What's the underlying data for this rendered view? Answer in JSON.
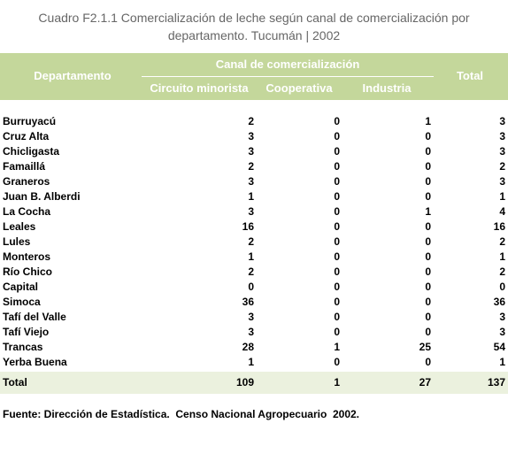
{
  "header": {
    "title": "Cuadro F2.1.1 Comercialización de leche según canal de comercialización por departamento. Tucumán | 2002"
  },
  "table": {
    "department_header": "Departamento",
    "group_header": "Canal de comercialización",
    "channel_headers": [
      "Circuito minorista",
      "Cooperativa",
      "Industria"
    ],
    "total_header": "Total",
    "rows": [
      [
        "Burruyacú",
        2,
        0,
        1,
        3
      ],
      [
        "Cruz Alta",
        3,
        0,
        0,
        3
      ],
      [
        "Chicligasta",
        3,
        0,
        0,
        3
      ],
      [
        "Famaillá",
        2,
        0,
        0,
        2
      ],
      [
        "Graneros",
        3,
        0,
        0,
        3
      ],
      [
        "Juan B. Alberdi",
        1,
        0,
        0,
        1
      ],
      [
        "La Cocha",
        3,
        0,
        1,
        4
      ],
      [
        "Leales",
        16,
        0,
        0,
        16
      ],
      [
        "Lules",
        2,
        0,
        0,
        2
      ],
      [
        "Monteros",
        1,
        0,
        0,
        1
      ],
      [
        "Río Chico",
        2,
        0,
        0,
        2
      ],
      [
        "Capital",
        0,
        0,
        0,
        0
      ],
      [
        "Simoca",
        36,
        0,
        0,
        36
      ],
      [
        "Tafí del Valle",
        3,
        0,
        0,
        3
      ],
      [
        "Tafí Viejo",
        3,
        0,
        0,
        3
      ],
      [
        "Trancas",
        28,
        1,
        25,
        54
      ],
      [
        "Yerba Buena",
        1,
        0,
        0,
        1
      ]
    ],
    "total_row": [
      "Total",
      109,
      1,
      27,
      137
    ]
  },
  "footer": {
    "source": "Fuente: Dirección de Estadística.  Censo Nacional Agropecuario  2002."
  }
}
